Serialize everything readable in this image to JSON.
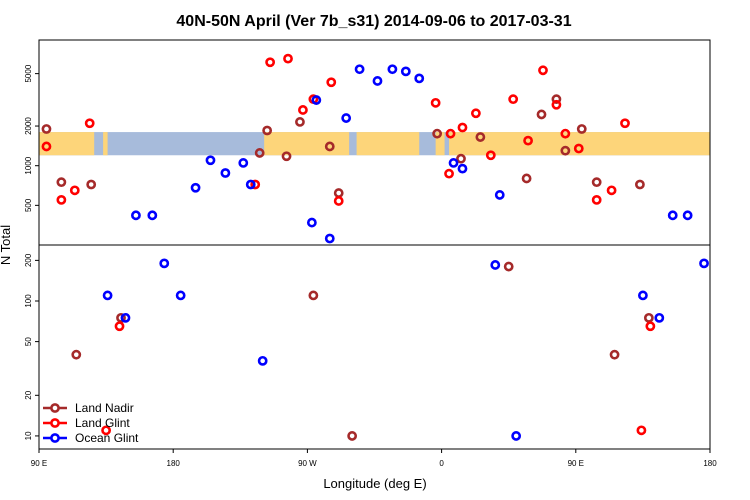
{
  "chart_data": {
    "type": "scatter",
    "title": "40N-50N April (Ver 7b_s31)   2014-09-06 to 2017-03-31",
    "xlabel": "Longitude (deg E)",
    "ylabel": "N Total",
    "x_ticks": [
      {
        "value": 90,
        "label": "90 E"
      },
      {
        "value": 180,
        "label": "180"
      },
      {
        "value": 270,
        "label": "90 W"
      },
      {
        "value": 360,
        "label": "0"
      },
      {
        "value": 450,
        "label": "90 E"
      },
      {
        "value": 540,
        "label": "180"
      }
    ],
    "xlim": [
      90,
      540
    ],
    "upper_panel": {
      "scale": "log",
      "ylim": [
        250,
        9000
      ],
      "ticks": [
        500,
        1000,
        2000,
        5000
      ]
    },
    "lower_panel": {
      "scale": "log",
      "ylim": [
        8,
        260
      ],
      "ticks": [
        10,
        20,
        50,
        100,
        200
      ]
    },
    "map_strip": {
      "y_range": [
        1200,
        1800
      ],
      "ocean_color": "#a7bbdb",
      "land_color": "#fdd57a"
    },
    "legend": {
      "position": "bottom-left"
    },
    "series": [
      {
        "name": "Land Nadir",
        "color": "#a52a2a",
        "points": [
          [
            95,
            1900
          ],
          [
            105,
            750
          ],
          [
            115,
            40
          ],
          [
            125,
            720
          ],
          [
            145,
            75
          ],
          [
            238,
            1250
          ],
          [
            243,
            1850
          ],
          [
            256,
            1180
          ],
          [
            265,
            2150
          ],
          [
            274,
            110
          ],
          [
            285,
            1400
          ],
          [
            291,
            620
          ],
          [
            300,
            10
          ],
          [
            357,
            1750
          ],
          [
            373,
            1130
          ],
          [
            386,
            1650
          ],
          [
            405,
            180
          ],
          [
            417,
            800
          ],
          [
            427,
            2450
          ],
          [
            437,
            3200
          ],
          [
            443,
            1300
          ],
          [
            454,
            1900
          ],
          [
            464,
            750
          ],
          [
            476,
            40
          ],
          [
            493,
            720
          ],
          [
            499,
            75
          ]
        ]
      },
      {
        "name": "Land Glint",
        "color": "#ff0000",
        "points": [
          [
            95,
            1400
          ],
          [
            105,
            550
          ],
          [
            114,
            650
          ],
          [
            124,
            2100
          ],
          [
            135,
            11
          ],
          [
            144,
            65
          ],
          [
            235,
            720
          ],
          [
            245,
            6100
          ],
          [
            257,
            6500
          ],
          [
            267,
            2650
          ],
          [
            274,
            3200
          ],
          [
            286,
            4300
          ],
          [
            291,
            540
          ],
          [
            356,
            3000
          ],
          [
            365,
            870
          ],
          [
            366,
            1750
          ],
          [
            374,
            1950
          ],
          [
            383,
            2500
          ],
          [
            393,
            1200
          ],
          [
            408,
            3200
          ],
          [
            418,
            1550
          ],
          [
            428,
            5300
          ],
          [
            437,
            2900
          ],
          [
            443,
            1750
          ],
          [
            452,
            1350
          ],
          [
            464,
            550
          ],
          [
            474,
            650
          ],
          [
            483,
            2100
          ],
          [
            494,
            11
          ],
          [
            500,
            65
          ]
        ]
      },
      {
        "name": "Ocean Glint",
        "color": "#0000ff",
        "points": [
          [
            136,
            110
          ],
          [
            148,
            75
          ],
          [
            155,
            420
          ],
          [
            166,
            420
          ],
          [
            174,
            190
          ],
          [
            185,
            110
          ],
          [
            195,
            680
          ],
          [
            205,
            1100
          ],
          [
            215,
            880
          ],
          [
            227,
            1050
          ],
          [
            232,
            720
          ],
          [
            240,
            36
          ],
          [
            273,
            370
          ],
          [
            276,
            3150
          ],
          [
            285,
            280
          ],
          [
            296,
            2300
          ],
          [
            305,
            5400
          ],
          [
            317,
            4400
          ],
          [
            327,
            5400
          ],
          [
            336,
            5200
          ],
          [
            345,
            4600
          ],
          [
            368,
            1050
          ],
          [
            374,
            950
          ],
          [
            396,
            185
          ],
          [
            399,
            600
          ],
          [
            410,
            10
          ],
          [
            495,
            110
          ],
          [
            506,
            75
          ],
          [
            515,
            420
          ],
          [
            525,
            420
          ],
          [
            536,
            190
          ]
        ]
      }
    ]
  }
}
